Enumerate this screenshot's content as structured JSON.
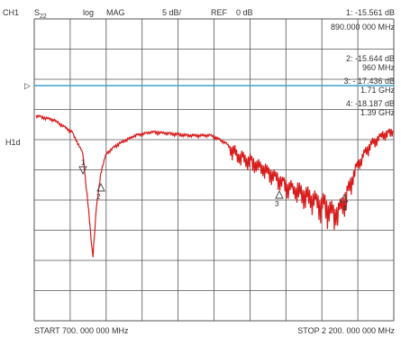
{
  "header": {
    "channel": "CH1",
    "param_base": "S",
    "param_sub": "22",
    "format": "log",
    "mode": "MAG",
    "scale": "5 dB/",
    "ref_label": "REF",
    "ref_value": "0 dB"
  },
  "markers_readout": [
    {
      "line1": "1: -15.561 dB",
      "line2": "890.000 000 MHz"
    },
    {
      "line1": "2: -15.644 dB",
      "line2": "960 MHz"
    },
    {
      "line1": "3: - 17.436 dB",
      "line2": "1.71 GHz"
    },
    {
      "line1": "4: -18.187 dB",
      "line2": "1.39 GHz"
    }
  ],
  "left_labels": {
    "ref_pointer": "▷",
    "h1d": "H1d"
  },
  "footer": {
    "start": "START  700. 000 000 MHz",
    "stop": "STOP   2 200. 000 000 MHz"
  },
  "marker_tags": [
    "1",
    "2",
    "3",
    "4"
  ],
  "colors": {
    "trace": "#d81b1b",
    "reference_line": "#3fa3c7",
    "grid": "#555555",
    "text": "#333333"
  }
}
